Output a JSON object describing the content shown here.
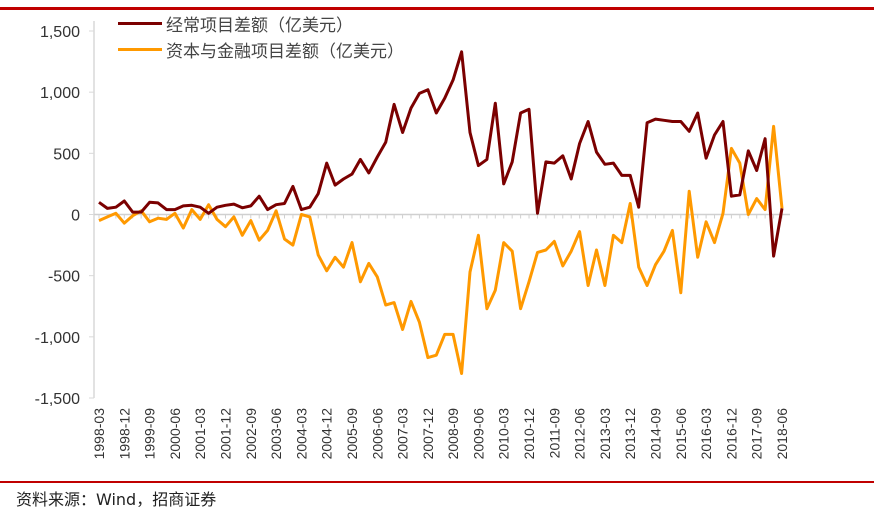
{
  "chart_data": {
    "type": "line",
    "title": "",
    "xlabel": "",
    "ylabel": "",
    "ylim": [
      -1500,
      1500
    ],
    "yticks": [
      1500,
      1000,
      500,
      0,
      -500,
      -1000,
      -1500
    ],
    "ytick_labels": [
      "1,500",
      "1,000",
      "500",
      "0",
      "-500",
      "-1,000",
      "-1,500"
    ],
    "start_quarter": "1998-03",
    "xtick_labels": [
      "1998-03",
      "1998-12",
      "1999-09",
      "2000-06",
      "2001-03",
      "2001-12",
      "2002-09",
      "2003-06",
      "2004-03",
      "2004-12",
      "2005-09",
      "2006-06",
      "2007-03",
      "2007-12",
      "2008-09",
      "2009-06",
      "2010-03",
      "2010-12",
      "2011-09",
      "2012-06",
      "2013-03",
      "2013-12",
      "2014-09",
      "2015-06",
      "2016-03",
      "2016-12",
      "2017-09",
      "2018-06"
    ],
    "legend_placement": "top-left",
    "grid": false,
    "series": [
      {
        "name": "经常项目差额（亿美元）",
        "color": "#7b0000",
        "values": [
          100,
          50,
          60,
          110,
          20,
          20,
          100,
          95,
          40,
          40,
          70,
          75,
          60,
          10,
          60,
          75,
          85,
          55,
          70,
          150,
          40,
          80,
          90,
          230,
          40,
          60,
          170,
          420,
          240,
          290,
          330,
          450,
          340,
          470,
          590,
          900,
          670,
          870,
          990,
          1020,
          830,
          950,
          1100,
          1330,
          670,
          400,
          450,
          910,
          250,
          430,
          830,
          860,
          10,
          430,
          420,
          480,
          290,
          580,
          760,
          510,
          410,
          420,
          320,
          320,
          60,
          750,
          780,
          770,
          760,
          760,
          680,
          830,
          460,
          650,
          760,
          150,
          160,
          520,
          360,
          620,
          -340,
          50
        ]
      },
      {
        "name": "资本与金融项目差额（亿美元）",
        "color": "#ff9900",
        "values": [
          -50,
          -20,
          10,
          -70,
          -10,
          30,
          -60,
          -30,
          -40,
          10,
          -110,
          40,
          -40,
          80,
          -40,
          -100,
          -20,
          -170,
          -50,
          -210,
          -130,
          30,
          -200,
          -250,
          0,
          -20,
          -330,
          -460,
          -350,
          -430,
          -230,
          -550,
          -400,
          -510,
          -740,
          -720,
          -940,
          -710,
          -880,
          -1170,
          -1150,
          -980,
          -980,
          -1300,
          -470,
          -170,
          -770,
          -620,
          -230,
          -300,
          -770,
          -550,
          -310,
          -290,
          -220,
          -420,
          -300,
          -140,
          -580,
          -290,
          -580,
          -170,
          -230,
          90,
          -430,
          -580,
          -410,
          -300,
          -130,
          -640,
          190,
          -350,
          -60,
          -230,
          10,
          540,
          420,
          0,
          130,
          40,
          720,
          50
        ]
      }
    ]
  },
  "source": "资料来源：Wind，招商证券"
}
